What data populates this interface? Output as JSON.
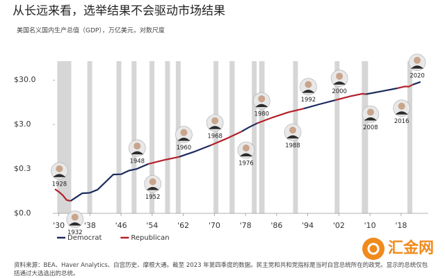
{
  "chart_data": {
    "type": "line",
    "title": "从长远来看，选举结果不会驱动市场结果",
    "subtitle": "美国名义国内生产总值（GDP），万亿美元，对数尺度",
    "log_y": true,
    "x": [
      1929,
      1930,
      1931,
      1932,
      1933,
      1936,
      1938,
      1940,
      1944,
      1946,
      1948,
      1950,
      1953,
      1957,
      1961,
      1965,
      1969,
      1973,
      1977,
      1979,
      1981,
      1985,
      1989,
      1993,
      1997,
      2001,
      2005,
      2008,
      2009,
      2013,
      2017,
      2019,
      2020,
      2021,
      2023
    ],
    "series": [
      {
        "name": "Democrat",
        "color": "#1b2a5c",
        "values": [
          null,
          null,
          null,
          null,
          0.057,
          0.085,
          0.087,
          0.103,
          0.225,
          0.228,
          0.275,
          0.3,
          0.389,
          null,
          0.563,
          0.743,
          1.02,
          null,
          2.09,
          2.63,
          3.21,
          null,
          null,
          6.86,
          8.58,
          10.58,
          null,
          null,
          14.48,
          16.84,
          19.61,
          null,
          null,
          23.68,
          27.36
        ]
      },
      {
        "name": "Republican",
        "color": "#b3202a",
        "values": [
          0.105,
          0.092,
          0.077,
          0.06,
          0.057,
          null,
          null,
          null,
          null,
          null,
          null,
          null,
          0.389,
          0.475,
          0.563,
          null,
          1.02,
          1.43,
          2.09,
          null,
          3.21,
          4.34,
          5.64,
          6.86,
          null,
          10.58,
          13.04,
          14.77,
          14.48,
          null,
          19.61,
          21.54,
          21.35,
          23.68,
          null
        ]
      }
    ],
    "xlim": [
      1929,
      2025
    ],
    "xticks": [
      {
        "value": 1930,
        "label": "'30"
      },
      {
        "value": 1938,
        "label": "'38"
      },
      {
        "value": 1946,
        "label": "'46"
      },
      {
        "value": 1954,
        "label": "'54"
      },
      {
        "value": 1962,
        "label": "'62"
      },
      {
        "value": 1970,
        "label": "'70"
      },
      {
        "value": 1978,
        "label": "'78"
      },
      {
        "value": 1986,
        "label": "'86"
      },
      {
        "value": 1994,
        "label": "'94"
      },
      {
        "value": 2002,
        "label": "'02"
      },
      {
        "value": 2010,
        "label": "'10"
      },
      {
        "value": 2018,
        "label": "'18"
      }
    ],
    "ylim": [
      0.03,
      80
    ],
    "yticks": [
      {
        "value": 0.03,
        "label": "$0.0"
      },
      {
        "value": 0.3,
        "label": "$0.3"
      },
      {
        "value": 3,
        "label": "$3.0"
      },
      {
        "value": 30,
        "label": "$30.0"
      }
    ],
    "recession_color": "#d6d6d6",
    "recessions": [
      [
        1929.6,
        1933.2
      ],
      [
        1937.4,
        1938.5
      ],
      [
        1945.1,
        1945.8
      ],
      [
        1948.9,
        1949.8
      ],
      [
        1953.5,
        1954.4
      ],
      [
        1957.6,
        1958.3
      ],
      [
        1960.3,
        1961.1
      ],
      [
        1969.9,
        1970.9
      ],
      [
        1973.9,
        1975.2
      ],
      [
        1980.0,
        1980.5
      ],
      [
        1981.5,
        1982.9
      ],
      [
        1990.5,
        1991.2
      ],
      [
        2001.2,
        2001.9
      ],
      [
        2007.9,
        2009.5
      ],
      [
        2020.1,
        2020.4
      ]
    ],
    "elections": [
      1928,
      1932,
      1948,
      1952,
      1960,
      1968,
      1976,
      1980,
      1988,
      1992,
      2000,
      2008,
      2016,
      2020
    ],
    "legend": "bottom-left"
  },
  "source": "资料来源：BEA、Haver Analytics、白宫历史、摩根大通。截至 2023 年第四季度的数据。民主党和共和党指标是当时白宫总统所在的政党。显示的总统仅包括通过大选选出的总统。",
  "watermark": "汇金网"
}
